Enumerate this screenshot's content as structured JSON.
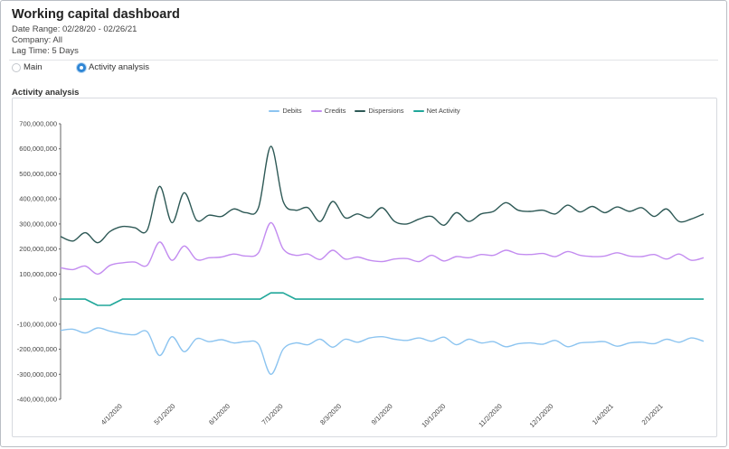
{
  "header": {
    "title": "Working capital dashboard",
    "date_range": "Date Range: 02/28/20 - 02/26/21",
    "company": "Company: All",
    "lag_time": "Lag Time: 5 Days"
  },
  "view_toggle": {
    "options": [
      "Main",
      "Activity analysis"
    ],
    "selected": "Activity analysis"
  },
  "section_title": "Activity analysis",
  "colors": {
    "debits": "#8cc4f0",
    "credits": "#c38cf0",
    "dispersions": "#2e5956",
    "net_activity": "#20a79a"
  },
  "chart_data": {
    "type": "line",
    "title": "",
    "legend_position": "top",
    "grid": false,
    "ylim": [
      -400000000,
      700000000
    ],
    "y_ticks": [
      "700,000,000",
      "600,000,000",
      "500,000,000",
      "400,000,000",
      "300,000,000",
      "200,000,000",
      "100,000,000",
      "0",
      "-100,000,000",
      "-200,000,000",
      "-300,000,000",
      "-400,000,000"
    ],
    "x_ticks": [
      "4/1/2020",
      "5/1/2020",
      "6/1/2020",
      "7/1/2020",
      "8/3/2020",
      "9/1/2020",
      "10/1/2020",
      "11/2/2020",
      "12/1/2020",
      "1/4/2021",
      "2/1/2021"
    ],
    "x_range": [
      "2020-02-28",
      "2021-02-26"
    ],
    "series": [
      {
        "name": "Debits",
        "points": [
          [
            "2020-02-28",
            -125
          ],
          [
            "2020-03-06",
            -120
          ],
          [
            "2020-03-13",
            -135
          ],
          [
            "2020-03-20",
            -115
          ],
          [
            "2020-03-27",
            -128
          ],
          [
            "2020-04-03",
            -138
          ],
          [
            "2020-04-10",
            -142
          ],
          [
            "2020-04-17",
            -130
          ],
          [
            "2020-04-24",
            -225
          ],
          [
            "2020-05-01",
            -150
          ],
          [
            "2020-05-08",
            -210
          ],
          [
            "2020-05-15",
            -158
          ],
          [
            "2020-05-22",
            -170
          ],
          [
            "2020-05-29",
            -162
          ],
          [
            "2020-06-05",
            -175
          ],
          [
            "2020-06-12",
            -170
          ],
          [
            "2020-06-19",
            -180
          ],
          [
            "2020-06-26",
            -300
          ],
          [
            "2020-07-03",
            -200
          ],
          [
            "2020-07-10",
            -175
          ],
          [
            "2020-07-17",
            -182
          ],
          [
            "2020-07-24",
            -160
          ],
          [
            "2020-07-31",
            -192
          ],
          [
            "2020-08-07",
            -160
          ],
          [
            "2020-08-14",
            -172
          ],
          [
            "2020-08-21",
            -155
          ],
          [
            "2020-08-28",
            -150
          ],
          [
            "2020-09-04",
            -160
          ],
          [
            "2020-09-11",
            -165
          ],
          [
            "2020-09-18",
            -155
          ],
          [
            "2020-09-25",
            -168
          ],
          [
            "2020-10-02",
            -152
          ],
          [
            "2020-10-09",
            -182
          ],
          [
            "2020-10-16",
            -160
          ],
          [
            "2020-10-23",
            -175
          ],
          [
            "2020-10-30",
            -170
          ],
          [
            "2020-11-06",
            -190
          ],
          [
            "2020-11-13",
            -178
          ],
          [
            "2020-11-20",
            -175
          ],
          [
            "2020-11-27",
            -180
          ],
          [
            "2020-12-04",
            -165
          ],
          [
            "2020-12-11",
            -190
          ],
          [
            "2020-12-18",
            -175
          ],
          [
            "2020-12-25",
            -172
          ],
          [
            "2021-01-01",
            -170
          ],
          [
            "2021-01-08",
            -188
          ],
          [
            "2021-01-15",
            -175
          ],
          [
            "2021-01-22",
            -172
          ],
          [
            "2021-01-29",
            -178
          ],
          [
            "2021-02-05",
            -160
          ],
          [
            "2021-02-12",
            -172
          ],
          [
            "2021-02-19",
            -155
          ],
          [
            "2021-02-26",
            -168
          ]
        ]
      },
      {
        "name": "Credits",
        "points": [
          [
            "2020-02-28",
            125
          ],
          [
            "2020-03-06",
            118
          ],
          [
            "2020-03-13",
            132
          ],
          [
            "2020-03-20",
            100
          ],
          [
            "2020-03-27",
            135
          ],
          [
            "2020-04-03",
            145
          ],
          [
            "2020-04-10",
            148
          ],
          [
            "2020-04-17",
            135
          ],
          [
            "2020-04-24",
            228
          ],
          [
            "2020-05-01",
            155
          ],
          [
            "2020-05-08",
            212
          ],
          [
            "2020-05-15",
            158
          ],
          [
            "2020-05-22",
            165
          ],
          [
            "2020-05-29",
            168
          ],
          [
            "2020-06-05",
            180
          ],
          [
            "2020-06-12",
            172
          ],
          [
            "2020-06-19",
            185
          ],
          [
            "2020-06-26",
            305
          ],
          [
            "2020-07-03",
            200
          ],
          [
            "2020-07-10",
            175
          ],
          [
            "2020-07-17",
            180
          ],
          [
            "2020-07-24",
            158
          ],
          [
            "2020-07-31",
            195
          ],
          [
            "2020-08-07",
            160
          ],
          [
            "2020-08-14",
            168
          ],
          [
            "2020-08-21",
            155
          ],
          [
            "2020-08-28",
            150
          ],
          [
            "2020-09-04",
            160
          ],
          [
            "2020-09-11",
            162
          ],
          [
            "2020-09-18",
            150
          ],
          [
            "2020-09-25",
            175
          ],
          [
            "2020-10-02",
            152
          ],
          [
            "2020-10-09",
            170
          ],
          [
            "2020-10-16",
            165
          ],
          [
            "2020-10-23",
            178
          ],
          [
            "2020-10-30",
            175
          ],
          [
            "2020-11-06",
            195
          ],
          [
            "2020-11-13",
            180
          ],
          [
            "2020-11-20",
            178
          ],
          [
            "2020-11-27",
            182
          ],
          [
            "2020-12-04",
            170
          ],
          [
            "2020-12-11",
            190
          ],
          [
            "2020-12-18",
            175
          ],
          [
            "2020-12-25",
            170
          ],
          [
            "2021-01-01",
            172
          ],
          [
            "2021-01-08",
            185
          ],
          [
            "2021-01-15",
            172
          ],
          [
            "2021-01-22",
            170
          ],
          [
            "2021-01-29",
            178
          ],
          [
            "2021-02-05",
            160
          ],
          [
            "2021-02-12",
            180
          ],
          [
            "2021-02-19",
            155
          ],
          [
            "2021-02-26",
            165
          ]
        ]
      },
      {
        "name": "Dispersions",
        "points": [
          [
            "2020-02-28",
            250
          ],
          [
            "2020-03-06",
            232
          ],
          [
            "2020-03-13",
            265
          ],
          [
            "2020-03-20",
            225
          ],
          [
            "2020-03-27",
            270
          ],
          [
            "2020-04-03",
            290
          ],
          [
            "2020-04-10",
            285
          ],
          [
            "2020-04-17",
            275
          ],
          [
            "2020-04-24",
            450
          ],
          [
            "2020-05-01",
            305
          ],
          [
            "2020-05-08",
            425
          ],
          [
            "2020-05-15",
            315
          ],
          [
            "2020-05-22",
            335
          ],
          [
            "2020-05-29",
            330
          ],
          [
            "2020-06-05",
            360
          ],
          [
            "2020-06-12",
            345
          ],
          [
            "2020-06-19",
            365
          ],
          [
            "2020-06-26",
            610
          ],
          [
            "2020-07-03",
            390
          ],
          [
            "2020-07-10",
            355
          ],
          [
            "2020-07-17",
            365
          ],
          [
            "2020-07-24",
            310
          ],
          [
            "2020-07-31",
            390
          ],
          [
            "2020-08-07",
            325
          ],
          [
            "2020-08-14",
            340
          ],
          [
            "2020-08-21",
            325
          ],
          [
            "2020-08-28",
            365
          ],
          [
            "2020-09-04",
            310
          ],
          [
            "2020-09-11",
            300
          ],
          [
            "2020-09-18",
            320
          ],
          [
            "2020-09-25",
            330
          ],
          [
            "2020-10-02",
            295
          ],
          [
            "2020-10-09",
            345
          ],
          [
            "2020-10-16",
            310
          ],
          [
            "2020-10-23",
            340
          ],
          [
            "2020-10-30",
            350
          ],
          [
            "2020-11-06",
            385
          ],
          [
            "2020-11-13",
            355
          ],
          [
            "2020-11-20",
            350
          ],
          [
            "2020-11-27",
            355
          ],
          [
            "2020-12-04",
            340
          ],
          [
            "2020-12-11",
            375
          ],
          [
            "2020-12-18",
            348
          ],
          [
            "2020-12-25",
            370
          ],
          [
            "2021-01-01",
            345
          ],
          [
            "2021-01-08",
            368
          ],
          [
            "2021-01-15",
            350
          ],
          [
            "2021-01-22",
            365
          ],
          [
            "2021-01-29",
            330
          ],
          [
            "2021-02-05",
            360
          ],
          [
            "2021-02-12",
            310
          ],
          [
            "2021-02-19",
            320
          ],
          [
            "2021-02-26",
            340
          ]
        ]
      },
      {
        "name": "Net Activity",
        "points": [
          [
            "2020-02-28",
            0
          ],
          [
            "2020-03-13",
            0
          ],
          [
            "2020-03-20",
            -25
          ],
          [
            "2020-03-27",
            -25
          ],
          [
            "2020-04-03",
            0
          ],
          [
            "2020-06-20",
            0
          ],
          [
            "2020-06-26",
            25
          ],
          [
            "2020-07-03",
            25
          ],
          [
            "2020-07-10",
            0
          ],
          [
            "2021-02-26",
            0
          ]
        ]
      }
    ],
    "y_unit_scale_note": ""
  }
}
